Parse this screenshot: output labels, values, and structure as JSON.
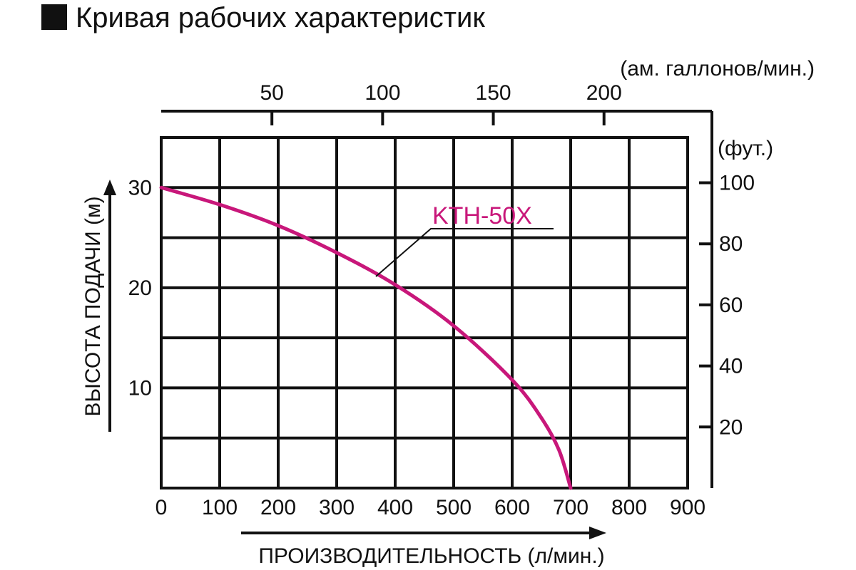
{
  "title": "Кривая рабочих характеристик",
  "colors": {
    "curve": "#c8177a",
    "ink": "#111111"
  },
  "chart_data": {
    "type": "line",
    "title": "Кривая рабочих характеристик",
    "xlabel": "ПРОИЗВОДИТЕЛЬНОСТЬ (л/мин.)",
    "ylabel": "ВЫСОТА ПОДАЧИ (м)",
    "xlim": [
      0,
      900
    ],
    "ylim": [
      0,
      35
    ],
    "x_ticks": [
      0,
      100,
      200,
      300,
      400,
      500,
      600,
      700,
      800,
      900
    ],
    "y_ticks": [
      10,
      20,
      30
    ],
    "grid": true,
    "top_axis": {
      "label": "(ам. галлонов/мин.)",
      "ticks": [
        50,
        100,
        150,
        200
      ],
      "liters_per_unit": 3.785
    },
    "right_axis": {
      "label": "(фут.)",
      "ticks": [
        20,
        40,
        60,
        80,
        100
      ],
      "meters_per_unit": 0.3048
    },
    "series": [
      {
        "name": "KTH-50X",
        "x": [
          0,
          100,
          200,
          300,
          400,
          500,
          600,
          650,
          680,
          700
        ],
        "y": [
          30,
          28.3,
          26.2,
          23.5,
          20.3,
          16.2,
          10.8,
          7.0,
          3.8,
          0
        ]
      }
    ]
  }
}
